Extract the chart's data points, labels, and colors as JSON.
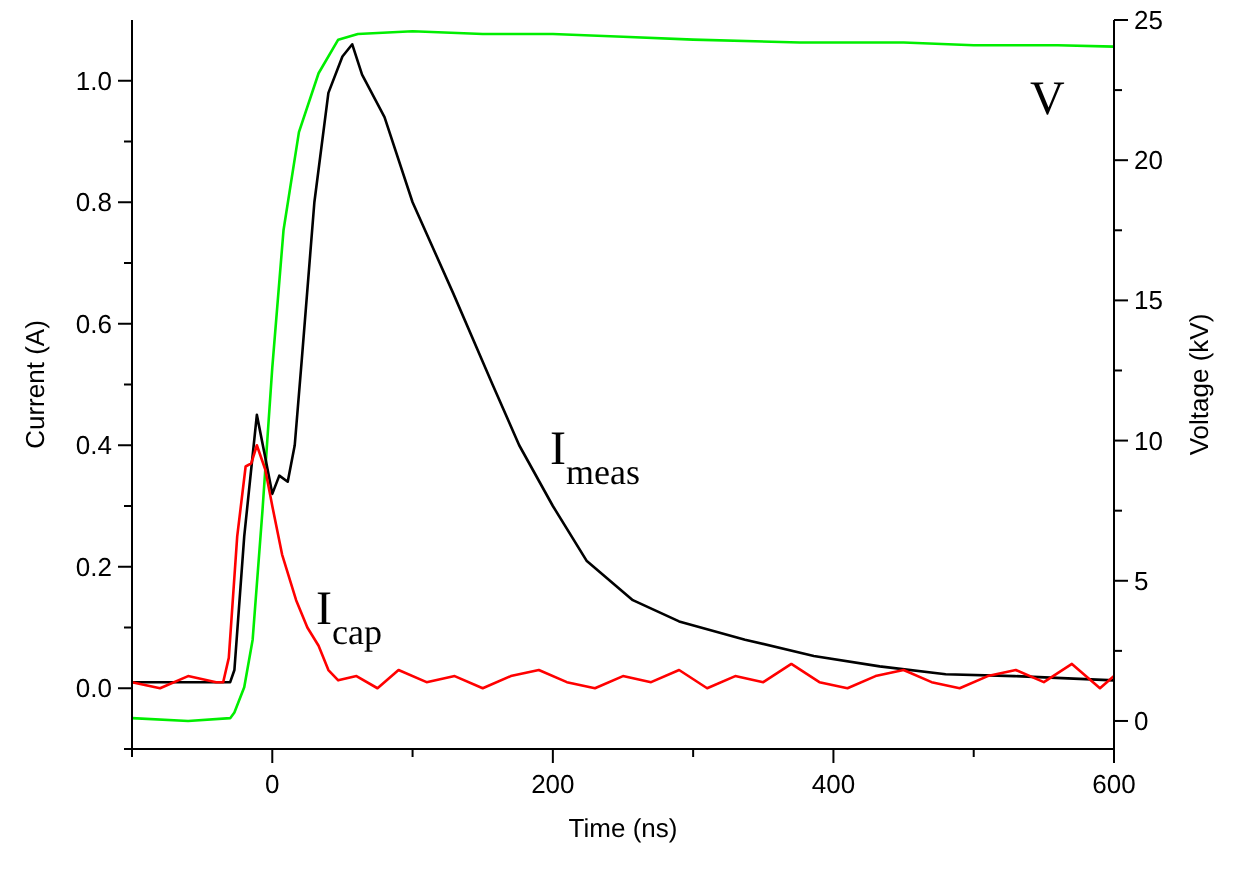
{
  "chart_data": {
    "type": "line",
    "xlabel": "Time (ns)",
    "ylabel": "Current (A)",
    "y2label": "Voltage (kV)",
    "xlim": [
      -100,
      600
    ],
    "xticks": [
      {
        "value": -100,
        "label": null
      },
      0,
      {
        "value": 100,
        "label": null
      },
      200,
      {
        "value": 300,
        "label": null
      },
      400,
      {
        "value": 500,
        "label": null
      },
      600
    ],
    "ylim": [
      -0.1,
      1.1
    ],
    "yticks": [
      {
        "value": -0.1,
        "label": null
      },
      "0.0",
      {
        "value": 0.1,
        "label": null
      },
      0.2,
      {
        "value": 0.3,
        "label": null
      },
      0.4,
      {
        "value": 0.5,
        "label": null
      },
      0.6,
      {
        "value": 0.7,
        "label": null
      },
      0.8,
      {
        "value": 0.9,
        "label": null
      },
      "1.0"
    ],
    "y2lim": [
      -1,
      25
    ],
    "y2ticks": [
      0,
      {
        "value": 2.5,
        "label": null
      },
      5,
      {
        "value": 7.5,
        "label": null
      },
      10,
      {
        "value": 12.5,
        "label": null
      },
      15,
      {
        "value": 17.5,
        "label": null
      },
      20,
      {
        "value": 22.5,
        "label": null
      },
      25
    ],
    "grid": false,
    "line_style": "solid",
    "marker": "none",
    "series": [
      {
        "name": "V",
        "color": "#00ee00",
        "axis": "y2",
        "x": [
          -100,
          -60,
          -30,
          -27,
          -20,
          -14,
          -7,
          0,
          8,
          19,
          33,
          47,
          61,
          100,
          150,
          200,
          250,
          300,
          376,
          450,
          500,
          560,
          600
        ],
        "values": [
          0.1,
          0.0,
          0.1,
          0.3,
          1.2,
          2.9,
          7.5,
          12.6,
          17.5,
          21,
          23.1,
          24.3,
          24.5,
          24.6,
          24.5,
          24.5,
          24.4,
          24.3,
          24.2,
          24.2,
          24.1,
          24.1,
          24.05
        ]
      },
      {
        "name": "I$_{meas}$",
        "color": "#000000",
        "x": [
          -100,
          -60,
          -30,
          -27,
          -20,
          -11,
          -5,
          0,
          5,
          11,
          16,
          21,
          30,
          40,
          50,
          57,
          64,
          80,
          100,
          129,
          157,
          176,
          200,
          224,
          257,
          290,
          337,
          386,
          433,
          480,
          529,
          600
        ],
        "values": [
          0.01,
          0.01,
          0.01,
          0.03,
          0.25,
          0.45,
          0.38,
          0.32,
          0.35,
          0.34,
          0.4,
          0.54,
          0.8,
          0.98,
          1.04,
          1.06,
          1.01,
          0.94,
          0.8,
          0.65,
          0.5,
          0.4,
          0.3,
          0.21,
          0.145,
          0.11,
          0.08,
          0.053,
          0.036,
          0.023,
          0.02,
          0.013
        ]
      },
      {
        "name": "I$_{cap}$",
        "color": "#ff0000",
        "x": [
          -100,
          -80,
          -60,
          -40,
          -35,
          -31,
          -25,
          -19,
          -15,
          -11,
          -5,
          0,
          7,
          17,
          25,
          33,
          40,
          47,
          60,
          75,
          90,
          110,
          130,
          150,
          170,
          190,
          210,
          230,
          250,
          270,
          290,
          310,
          330,
          350,
          370,
          390,
          410,
          430,
          450,
          470,
          490,
          510,
          530,
          550,
          570,
          590,
          600
        ],
        "values": [
          0.01,
          0.0,
          0.02,
          0.01,
          0.01,
          0.05,
          0.25,
          0.365,
          0.37,
          0.4,
          0.36,
          0.3,
          0.22,
          0.145,
          0.1,
          0.07,
          0.03,
          0.013,
          0.02,
          0.0,
          0.03,
          0.01,
          0.02,
          0.0,
          0.02,
          0.03,
          0.01,
          0.0,
          0.02,
          0.01,
          0.03,
          0.0,
          0.02,
          0.01,
          0.04,
          0.01,
          0.0,
          0.02,
          0.03,
          0.01,
          0.0,
          0.02,
          0.03,
          0.01,
          0.04,
          0.0,
          0.02
        ]
      }
    ]
  }
}
